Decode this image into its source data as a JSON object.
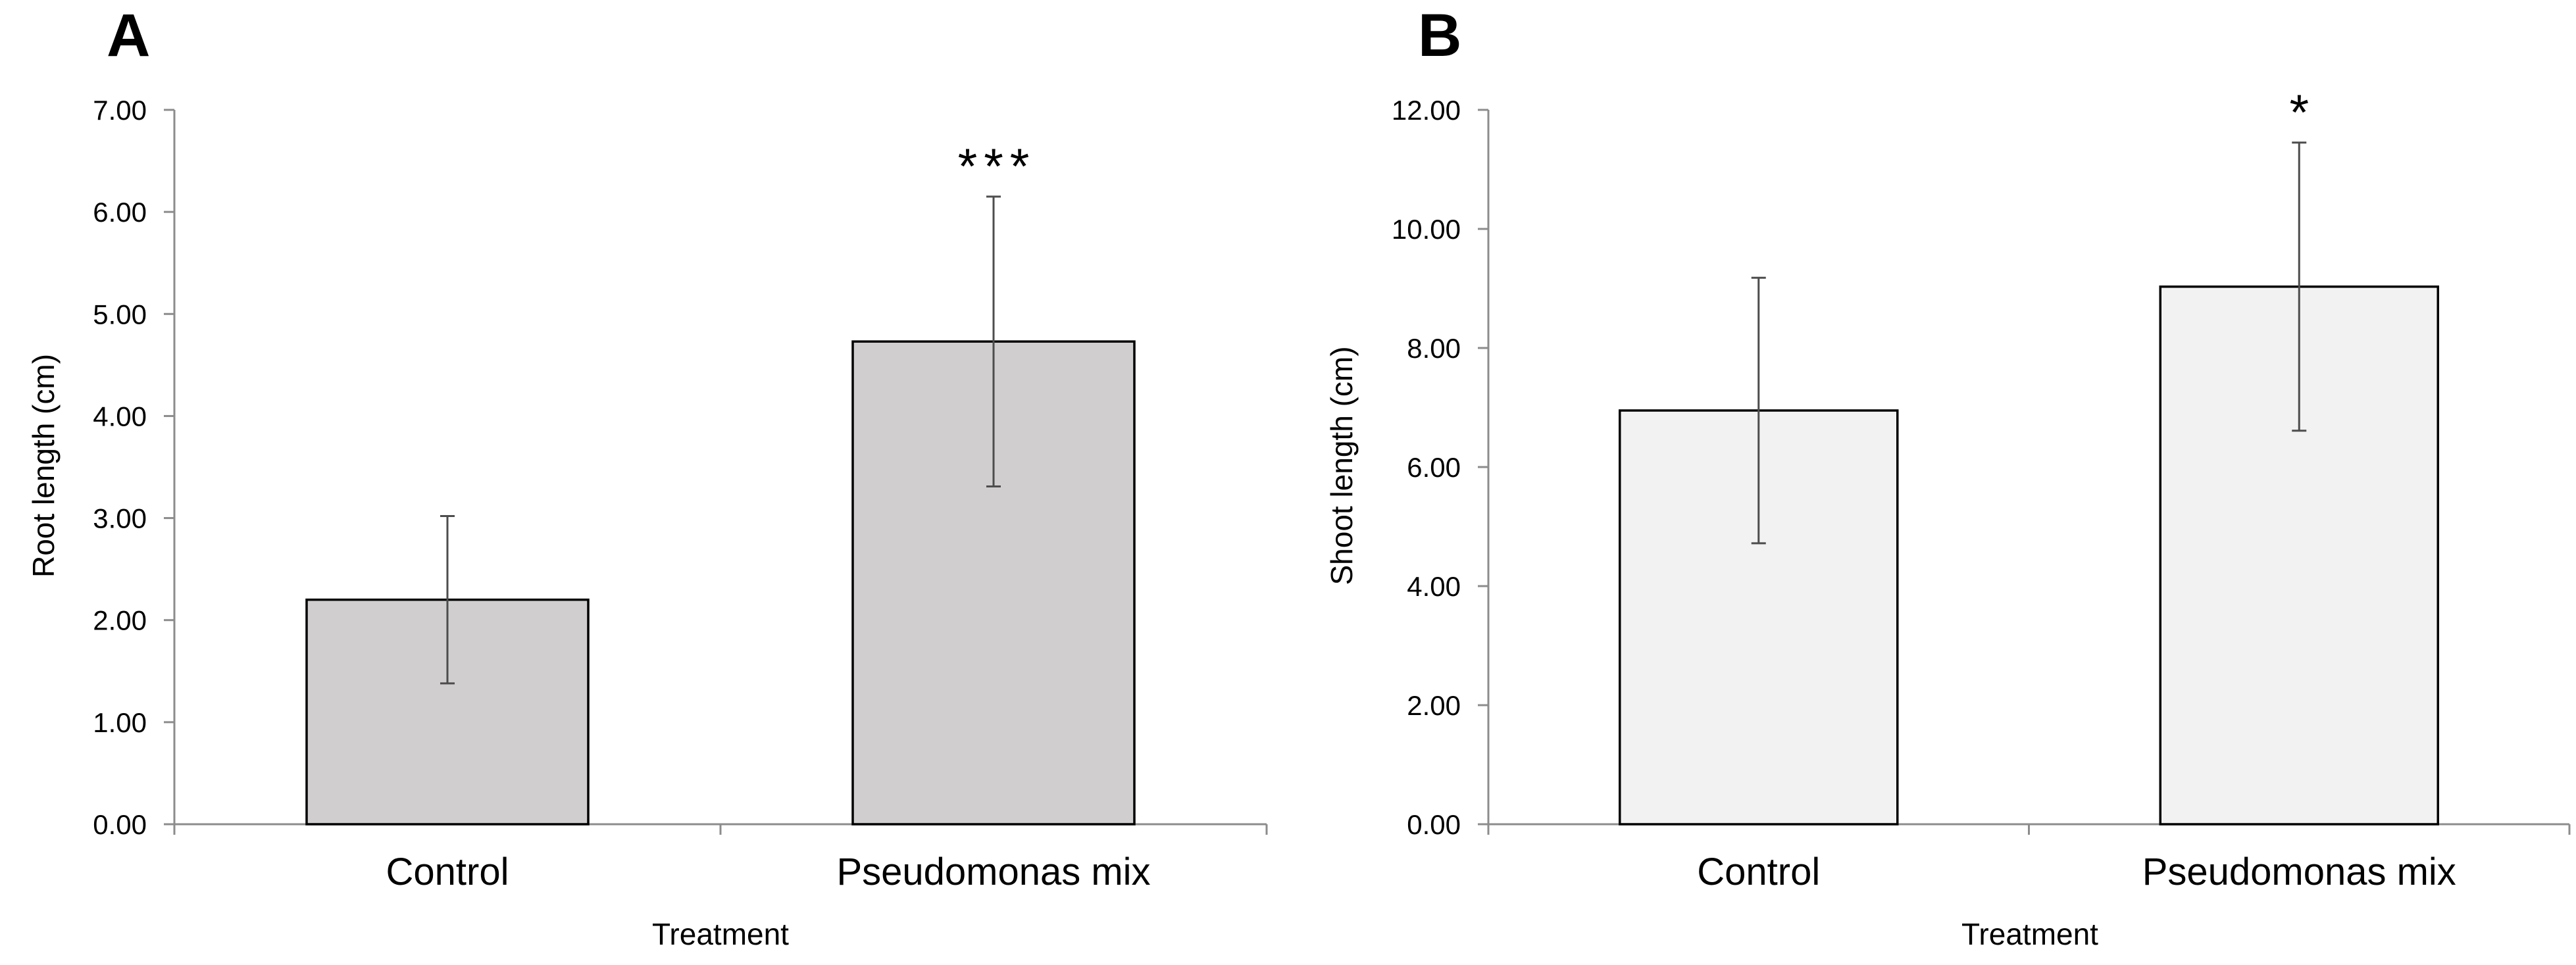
{
  "chart_data": [
    {
      "panel": "A",
      "type": "bar",
      "categories": [
        "Control",
        "Pseudomonas mix"
      ],
      "values": [
        2.2,
        4.73
      ],
      "errors": [
        0.82,
        1.42
      ],
      "significance": [
        "",
        "***"
      ],
      "xlabel": "Treatment",
      "ylabel": "Root length (cm)",
      "ylim": [
        0,
        7
      ],
      "yticks": [
        "0.00",
        "1.00",
        "2.00",
        "3.00",
        "4.00",
        "5.00",
        "6.00",
        "7.00"
      ],
      "bar_color": "#d0cece"
    },
    {
      "panel": "B",
      "type": "bar",
      "categories": [
        "Control",
        "Pseudomonas mix"
      ],
      "values": [
        6.95,
        9.03
      ],
      "errors": [
        2.23,
        2.42
      ],
      "significance": [
        "",
        "*"
      ],
      "xlabel": "Treatment",
      "ylabel": "Shoot length (cm)",
      "ylim": [
        0,
        12
      ],
      "yticks": [
        "0.00",
        "2.00",
        "4.00",
        "6.00",
        "8.00",
        "10.00",
        "12.00"
      ],
      "bar_color": "#f2f2f2"
    }
  ]
}
